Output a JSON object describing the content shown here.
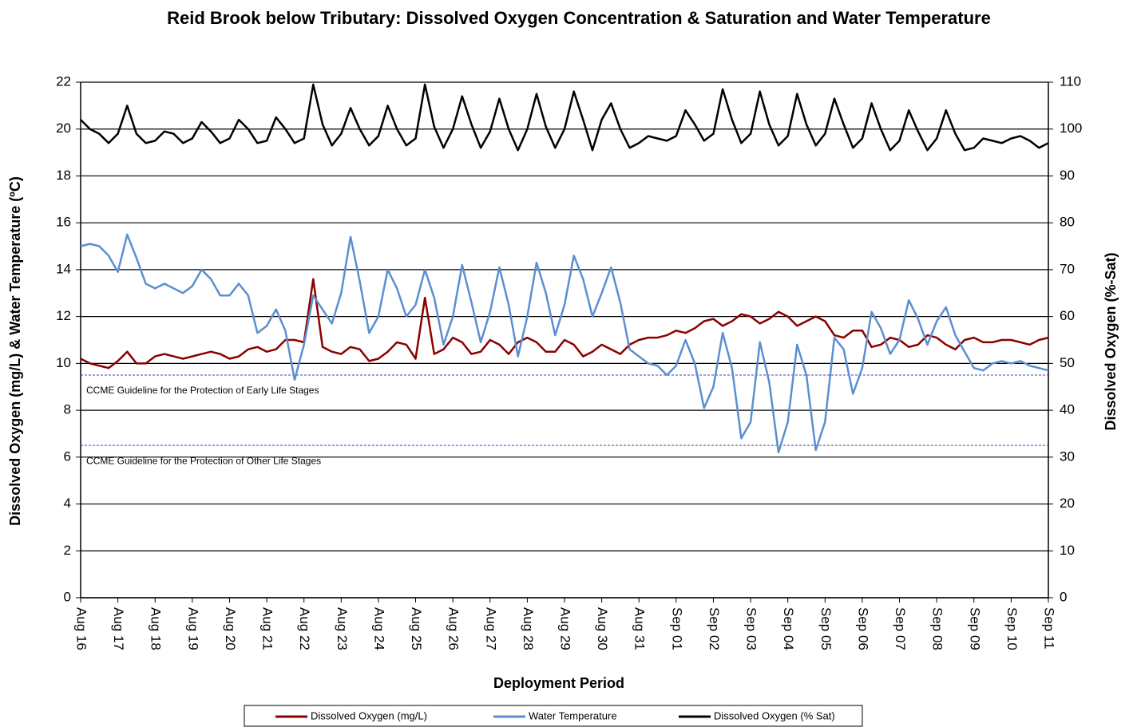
{
  "chart_data": {
    "type": "line",
    "title": "Reid Brook below Tributary: Dissolved Oxygen Concentration & Saturation and Water Temperature",
    "x_label": "Deployment Period",
    "y_label": "Dissolved  Oxygen (mg/L) & Water Temperature (ºC)",
    "y2_label": "Dissolved  Oxygen (%-Sat)",
    "xlim": [
      0,
      26
    ],
    "xticks": [
      {
        "value": 0,
        "label": "Aug 16"
      },
      {
        "value": 1,
        "label": "Aug 17"
      },
      {
        "value": 2,
        "label": "Aug 18"
      },
      {
        "value": 3,
        "label": "Aug 19"
      },
      {
        "value": 4,
        "label": "Aug 20"
      },
      {
        "value": 5,
        "label": "Aug 21"
      },
      {
        "value": 6,
        "label": "Aug 22"
      },
      {
        "value": 7,
        "label": "Aug 23"
      },
      {
        "value": 8,
        "label": "Aug 24"
      },
      {
        "value": 9,
        "label": "Aug 25"
      },
      {
        "value": 10,
        "label": "Aug 26"
      },
      {
        "value": 11,
        "label": "Aug 27"
      },
      {
        "value": 12,
        "label": "Aug 28"
      },
      {
        "value": 13,
        "label": "Aug 29"
      },
      {
        "value": 14,
        "label": "Aug 30"
      },
      {
        "value": 15,
        "label": "Aug 31"
      },
      {
        "value": 16,
        "label": "Sep 01"
      },
      {
        "value": 17,
        "label": "Sep 02"
      },
      {
        "value": 18,
        "label": "Sep 03"
      },
      {
        "value": 19,
        "label": "Sep 04"
      },
      {
        "value": 20,
        "label": "Sep 05"
      },
      {
        "value": 21,
        "label": "Sep 06"
      },
      {
        "value": 22,
        "label": "Sep 07"
      },
      {
        "value": 23,
        "label": "Sep 08"
      },
      {
        "value": 24,
        "label": "Sep 09"
      },
      {
        "value": 25,
        "label": "Sep 10"
      },
      {
        "value": 26,
        "label": "Sep 11"
      }
    ],
    "ylim": [
      0,
      22
    ],
    "yticks": [
      0,
      2,
      4,
      6,
      8,
      10,
      12,
      14,
      16,
      18,
      20,
      22
    ],
    "y2lim": [
      0,
      110
    ],
    "y2ticks": [
      0,
      10,
      20,
      30,
      40,
      50,
      60,
      70,
      80,
      90,
      100,
      110
    ],
    "grid": true,
    "legend": "bottom",
    "reference_lines": [
      {
        "value": 9.5,
        "label": "CCME Guideline  for the Protection of Early Life Stages",
        "color": "#3344cc"
      },
      {
        "value": 6.5,
        "label": "CCME Guideline  for the Protection of Other Life Stages",
        "color": "#3344cc"
      }
    ],
    "x": [
      0,
      0.25,
      0.5,
      0.75,
      1,
      1.25,
      1.5,
      1.75,
      2,
      2.25,
      2.5,
      2.75,
      3,
      3.25,
      3.5,
      3.75,
      4,
      4.25,
      4.5,
      4.75,
      5,
      5.25,
      5.5,
      5.75,
      6,
      6.25,
      6.5,
      6.75,
      7,
      7.25,
      7.5,
      7.75,
      8,
      8.25,
      8.5,
      8.75,
      9,
      9.25,
      9.5,
      9.75,
      10,
      10.25,
      10.5,
      10.75,
      11,
      11.25,
      11.5,
      11.75,
      12,
      12.25,
      12.5,
      12.75,
      13,
      13.25,
      13.5,
      13.75,
      14,
      14.25,
      14.5,
      14.75,
      15,
      15.25,
      15.5,
      15.75,
      16,
      16.25,
      16.5,
      16.75,
      17,
      17.25,
      17.5,
      17.75,
      18,
      18.25,
      18.5,
      18.75,
      19,
      19.25,
      19.5,
      19.75,
      20,
      20.25,
      20.5,
      20.75,
      21,
      21.25,
      21.5,
      21.75,
      22,
      22.25,
      22.5,
      22.75,
      23,
      23.25,
      23.5,
      23.75,
      24,
      24.25,
      24.5,
      24.75,
      25,
      25.25,
      25.5,
      25.75,
      26
    ],
    "series": [
      {
        "name": "Dissolved Oxygen (mg/L)",
        "color": "#8b0000",
        "axis": "y",
        "values": [
          10.2,
          10.0,
          9.9,
          9.8,
          10.1,
          10.5,
          10.0,
          10.0,
          10.3,
          10.4,
          10.3,
          10.2,
          10.3,
          10.4,
          10.5,
          10.4,
          10.2,
          10.3,
          10.6,
          10.7,
          10.5,
          10.6,
          11.0,
          11.0,
          10.9,
          13.6,
          10.7,
          10.5,
          10.4,
          10.7,
          10.6,
          10.1,
          10.2,
          10.5,
          10.9,
          10.8,
          10.2,
          12.8,
          10.4,
          10.6,
          11.1,
          10.9,
          10.4,
          10.5,
          11.0,
          10.8,
          10.4,
          10.9,
          11.1,
          10.9,
          10.5,
          10.5,
          11.0,
          10.8,
          10.3,
          10.5,
          10.8,
          10.6,
          10.4,
          10.8,
          11.0,
          11.1,
          11.1,
          11.2,
          11.4,
          11.3,
          11.5,
          11.8,
          11.9,
          11.6,
          11.8,
          12.1,
          12.0,
          11.7,
          11.9,
          12.2,
          12.0,
          11.6,
          11.8,
          12.0,
          11.8,
          11.2,
          11.1,
          11.4,
          11.4,
          10.7,
          10.8,
          11.1,
          11.0,
          10.7,
          10.8,
          11.2,
          11.1,
          10.8,
          10.6,
          11.0,
          11.1,
          10.9,
          10.9,
          11.0,
          11.0,
          10.9,
          10.8,
          11.0,
          11.1
        ]
      },
      {
        "name": "Water Temperature",
        "color": "#5b8fd0",
        "axis": "y",
        "values": [
          15.0,
          15.1,
          15.0,
          14.6,
          13.9,
          15.5,
          14.5,
          13.4,
          13.2,
          13.4,
          13.2,
          13.0,
          13.3,
          14.0,
          13.6,
          12.9,
          12.9,
          13.4,
          12.9,
          11.3,
          11.6,
          12.3,
          11.4,
          9.3,
          10.8,
          12.9,
          12.3,
          11.7,
          13.0,
          15.4,
          13.5,
          11.3,
          12.0,
          14.0,
          13.2,
          12.0,
          12.5,
          14.0,
          12.8,
          10.8,
          12.0,
          14.2,
          12.6,
          10.9,
          12.2,
          14.1,
          12.5,
          10.3,
          12.0,
          14.3,
          13.0,
          11.2,
          12.5,
          14.6,
          13.6,
          12.0,
          13.0,
          14.1,
          12.6,
          10.6,
          10.3,
          10.0,
          9.9,
          9.5,
          9.9,
          11.0,
          10.0,
          8.1,
          9.0,
          11.3,
          9.8,
          6.8,
          7.5,
          10.9,
          9.2,
          6.2,
          7.5,
          10.8,
          9.5,
          6.3,
          7.5,
          11.1,
          10.6,
          8.7,
          9.8,
          12.2,
          11.5,
          10.4,
          11.0,
          12.7,
          11.9,
          10.8,
          11.8,
          12.4,
          11.2,
          10.5,
          9.8,
          9.7,
          10.0,
          10.1,
          10.0,
          10.1,
          9.9,
          9.8,
          9.7
        ]
      },
      {
        "name": "Dissolved Oxygen (% Sat)",
        "color": "#000000",
        "axis": "y2",
        "values": [
          102,
          100,
          99,
          97,
          99,
          105,
          99,
          97,
          97.5,
          99.5,
          99,
          97,
          98,
          101.5,
          99.5,
          97,
          98,
          102,
          100,
          97,
          97.5,
          102.5,
          100,
          97,
          98,
          109.5,
          101,
          96.5,
          99,
          104.5,
          100,
          96.5,
          98.5,
          105,
          100,
          96.5,
          98,
          109.5,
          100.5,
          96,
          100,
          107,
          101,
          96,
          99.5,
          106.5,
          100,
          95.5,
          100,
          107.5,
          100.5,
          96,
          100,
          108,
          102,
          95.5,
          102,
          105.5,
          100,
          96,
          97,
          98.5,
          98,
          97.5,
          98.5,
          104,
          101,
          97.5,
          99,
          108.5,
          102,
          97,
          99,
          108,
          101,
          96.5,
          98.5,
          107.5,
          101,
          96.5,
          99,
          106.5,
          101,
          96,
          98,
          105.5,
          100,
          95.5,
          97.5,
          104,
          99.5,
          95.5,
          98,
          104,
          99,
          95.5,
          96,
          98,
          97.5,
          97,
          98,
          98.5,
          97.5,
          96,
          97
        ]
      }
    ]
  }
}
